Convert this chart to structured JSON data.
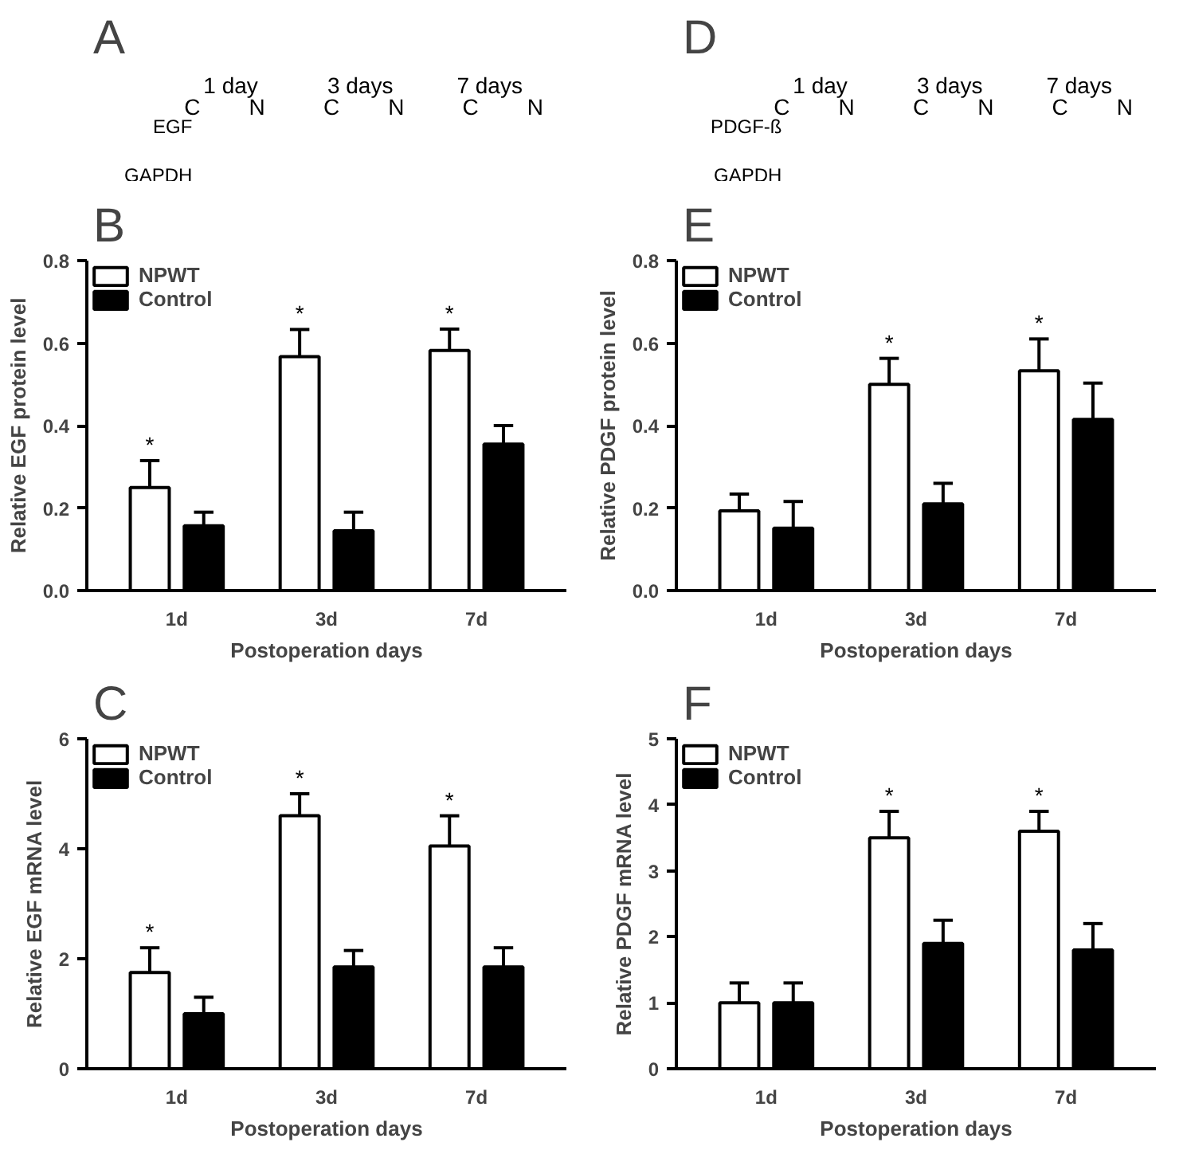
{
  "chart_data": [
    {
      "type": "other",
      "title": "A",
      "annotations": [
        "1 day",
        "3 days",
        "7 days",
        "C",
        "N",
        "C",
        "N",
        "C",
        "N",
        "EGF",
        "GAPDH"
      ]
    },
    {
      "type": "other",
      "title": "D",
      "annotations": [
        "1 day",
        "3 days",
        "7 days",
        "C",
        "N",
        "C",
        "N",
        "C",
        "N",
        "PDGF-ß",
        "GAPDH"
      ]
    },
    {
      "type": "bar",
      "title": "B",
      "xlabel": "Postoperation days",
      "ylabel": "Relative EGF protein level",
      "categories": [
        "1d",
        "3d",
        "7d"
      ],
      "series": [
        {
          "name": "NPWT",
          "color": "#ffffff",
          "values": [
            0.25,
            0.567,
            0.582
          ],
          "errors": [
            0.065,
            0.066,
            0.052
          ],
          "value_labels": [
            "*",
            "*",
            "*"
          ]
        },
        {
          "name": "Control",
          "color": "#000000",
          "values": [
            0.157,
            0.145,
            0.355
          ],
          "errors": [
            0.033,
            0.045,
            0.045
          ]
        }
      ],
      "ylim": [
        0,
        0.8
      ],
      "yticks": [
        {
          "value": 0,
          "label": "0.0"
        },
        0.2,
        0.4,
        0.6,
        0.8
      ],
      "grid": false,
      "legend": "top left"
    },
    {
      "type": "bar",
      "title": "E",
      "xlabel": "Postoperation days",
      "ylabel": "Relative PDGF protein level",
      "categories": [
        "1d",
        "3d",
        "7d"
      ],
      "series": [
        {
          "name": "NPWT",
          "color": "#ffffff",
          "values": [
            0.193,
            0.5,
            0.533
          ],
          "errors": [
            0.041,
            0.063,
            0.077
          ],
          "value_labels": [
            null,
            "*",
            "*"
          ]
        },
        {
          "name": "Control",
          "color": "#000000",
          "values": [
            0.151,
            0.21,
            0.415
          ],
          "errors": [
            0.065,
            0.05,
            0.088
          ]
        }
      ],
      "ylim": [
        0,
        0.8
      ],
      "yticks": [
        {
          "value": 0,
          "label": "0.0"
        },
        0.2,
        0.4,
        0.6,
        0.8
      ],
      "grid": false,
      "legend": "top left"
    },
    {
      "type": "bar",
      "title": "C",
      "xlabel": "Postoperation days",
      "ylabel": "Relative EGF mRNA level",
      "categories": [
        "1d",
        "3d",
        "7d"
      ],
      "series": [
        {
          "name": "NPWT",
          "color": "#ffffff",
          "values": [
            1.75,
            4.6,
            4.05
          ],
          "errors": [
            0.45,
            0.4,
            0.55
          ],
          "value_labels": [
            "*",
            "*",
            "*"
          ]
        },
        {
          "name": "Control",
          "color": "#000000",
          "values": [
            1.0,
            1.85,
            1.85
          ],
          "errors": [
            0.3,
            0.3,
            0.35
          ]
        }
      ],
      "ylim": [
        0,
        6
      ],
      "yticks": [
        0,
        2,
        4,
        6
      ],
      "grid": false,
      "legend": "top left"
    },
    {
      "type": "bar",
      "title": "F",
      "xlabel": "Postoperation days",
      "ylabel": "Relative PDGF mRNA level",
      "categories": [
        "1d",
        "3d",
        "7d"
      ],
      "series": [
        {
          "name": "NPWT",
          "color": "#ffffff",
          "values": [
            1.0,
            3.5,
            3.6
          ],
          "errors": [
            0.3,
            0.4,
            0.3
          ],
          "value_labels": [
            null,
            "*",
            "*"
          ]
        },
        {
          "name": "Control",
          "color": "#000000",
          "values": [
            1.0,
            1.9,
            1.8
          ],
          "errors": [
            0.3,
            0.35,
            0.4
          ]
        }
      ],
      "ylim": [
        0,
        5
      ],
      "yticks": [
        0,
        1,
        2,
        3,
        4,
        5
      ],
      "grid": false,
      "legend": "top left"
    }
  ]
}
